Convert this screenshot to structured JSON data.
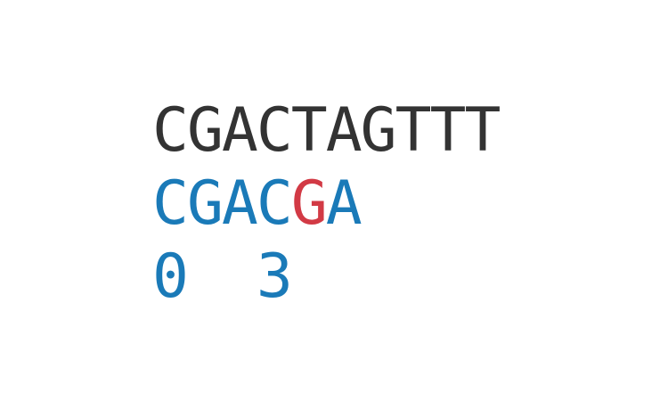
{
  "text": "CGACTAGTTT",
  "pattern": [
    {
      "char": "C",
      "status": "match"
    },
    {
      "char": "G",
      "status": "match"
    },
    {
      "char": "A",
      "status": "match"
    },
    {
      "char": "C",
      "status": "match"
    },
    {
      "char": "G",
      "status": "mismatch"
    },
    {
      "char": "A",
      "status": "match"
    }
  ],
  "indices": [
    {
      "value": "0",
      "column": 0
    },
    {
      "value": "3",
      "column": 3
    }
  ],
  "colors": {
    "text": "#333333",
    "match": "#1a7ab8",
    "mismatch": "#d23a45",
    "index": "#1a7ab8"
  }
}
